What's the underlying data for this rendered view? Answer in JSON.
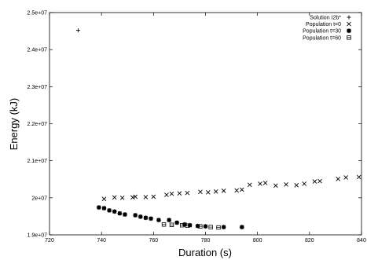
{
  "chart_data": {
    "type": "scatter",
    "xlabel": "Duration (s)",
    "ylabel": "Energy (kJ)",
    "xlim": [
      720,
      840
    ],
    "ylim": [
      19000000,
      25000000
    ],
    "x_ticks": [
      720,
      740,
      760,
      780,
      800,
      820,
      840
    ],
    "x_tick_labels": [
      "720",
      "740",
      "760",
      "780",
      "800",
      "820",
      "840"
    ],
    "y_ticks": [
      19000000,
      20000000,
      21000000,
      22000000,
      23000000,
      24000000,
      25000000
    ],
    "y_tick_labels": [
      "1.9e+07",
      "2e+07",
      "2.1e+07",
      "2.2e+07",
      "2.3e+07",
      "2.4e+07",
      "2.5e+07"
    ],
    "legend_position": "top-right",
    "series": [
      {
        "name": "Solution I2b*",
        "marker": "plus",
        "points": [
          [
            731,
            24520000
          ]
        ]
      },
      {
        "name": "Population t=0",
        "marker": "cross",
        "points": [
          [
            741,
            19970000
          ],
          [
            745,
            20010000
          ],
          [
            748,
            20000000
          ],
          [
            752,
            20010000
          ],
          [
            753,
            20030000
          ],
          [
            757,
            20020000
          ],
          [
            760,
            20030000
          ],
          [
            765,
            20080000
          ],
          [
            767,
            20110000
          ],
          [
            770,
            20120000
          ],
          [
            773,
            20130000
          ],
          [
            778,
            20160000
          ],
          [
            781,
            20150000
          ],
          [
            784,
            20170000
          ],
          [
            787,
            20190000
          ],
          [
            792,
            20200000
          ],
          [
            794,
            20220000
          ],
          [
            797,
            20350000
          ],
          [
            801,
            20380000
          ],
          [
            803,
            20400000
          ],
          [
            807,
            20330000
          ],
          [
            811,
            20360000
          ],
          [
            815,
            20340000
          ],
          [
            818,
            20380000
          ],
          [
            822,
            20440000
          ],
          [
            824,
            20450000
          ],
          [
            831,
            20510000
          ],
          [
            834,
            20550000
          ],
          [
            839,
            20560000
          ]
        ]
      },
      {
        "name": "Population t=30",
        "marker": "asterisk",
        "points": [
          [
            739,
            19740000
          ],
          [
            741,
            19720000
          ],
          [
            743,
            19660000
          ],
          [
            745,
            19630000
          ],
          [
            747,
            19580000
          ],
          [
            749,
            19550000
          ],
          [
            753,
            19530000
          ],
          [
            755,
            19490000
          ],
          [
            757,
            19460000
          ],
          [
            759,
            19440000
          ],
          [
            762,
            19400000
          ],
          [
            766,
            19400000
          ],
          [
            769,
            19330000
          ],
          [
            772,
            19280000
          ],
          [
            774,
            19260000
          ],
          [
            777,
            19240000
          ],
          [
            780,
            19230000
          ],
          [
            787,
            19210000
          ],
          [
            794,
            19210000
          ]
        ]
      },
      {
        "name": "Population t=60",
        "marker": "square",
        "points": [
          [
            764,
            19280000
          ],
          [
            767,
            19270000
          ],
          [
            771,
            19260000
          ],
          [
            773,
            19250000
          ],
          [
            778,
            19230000
          ],
          [
            782,
            19210000
          ],
          [
            785,
            19200000
          ]
        ]
      }
    ]
  }
}
